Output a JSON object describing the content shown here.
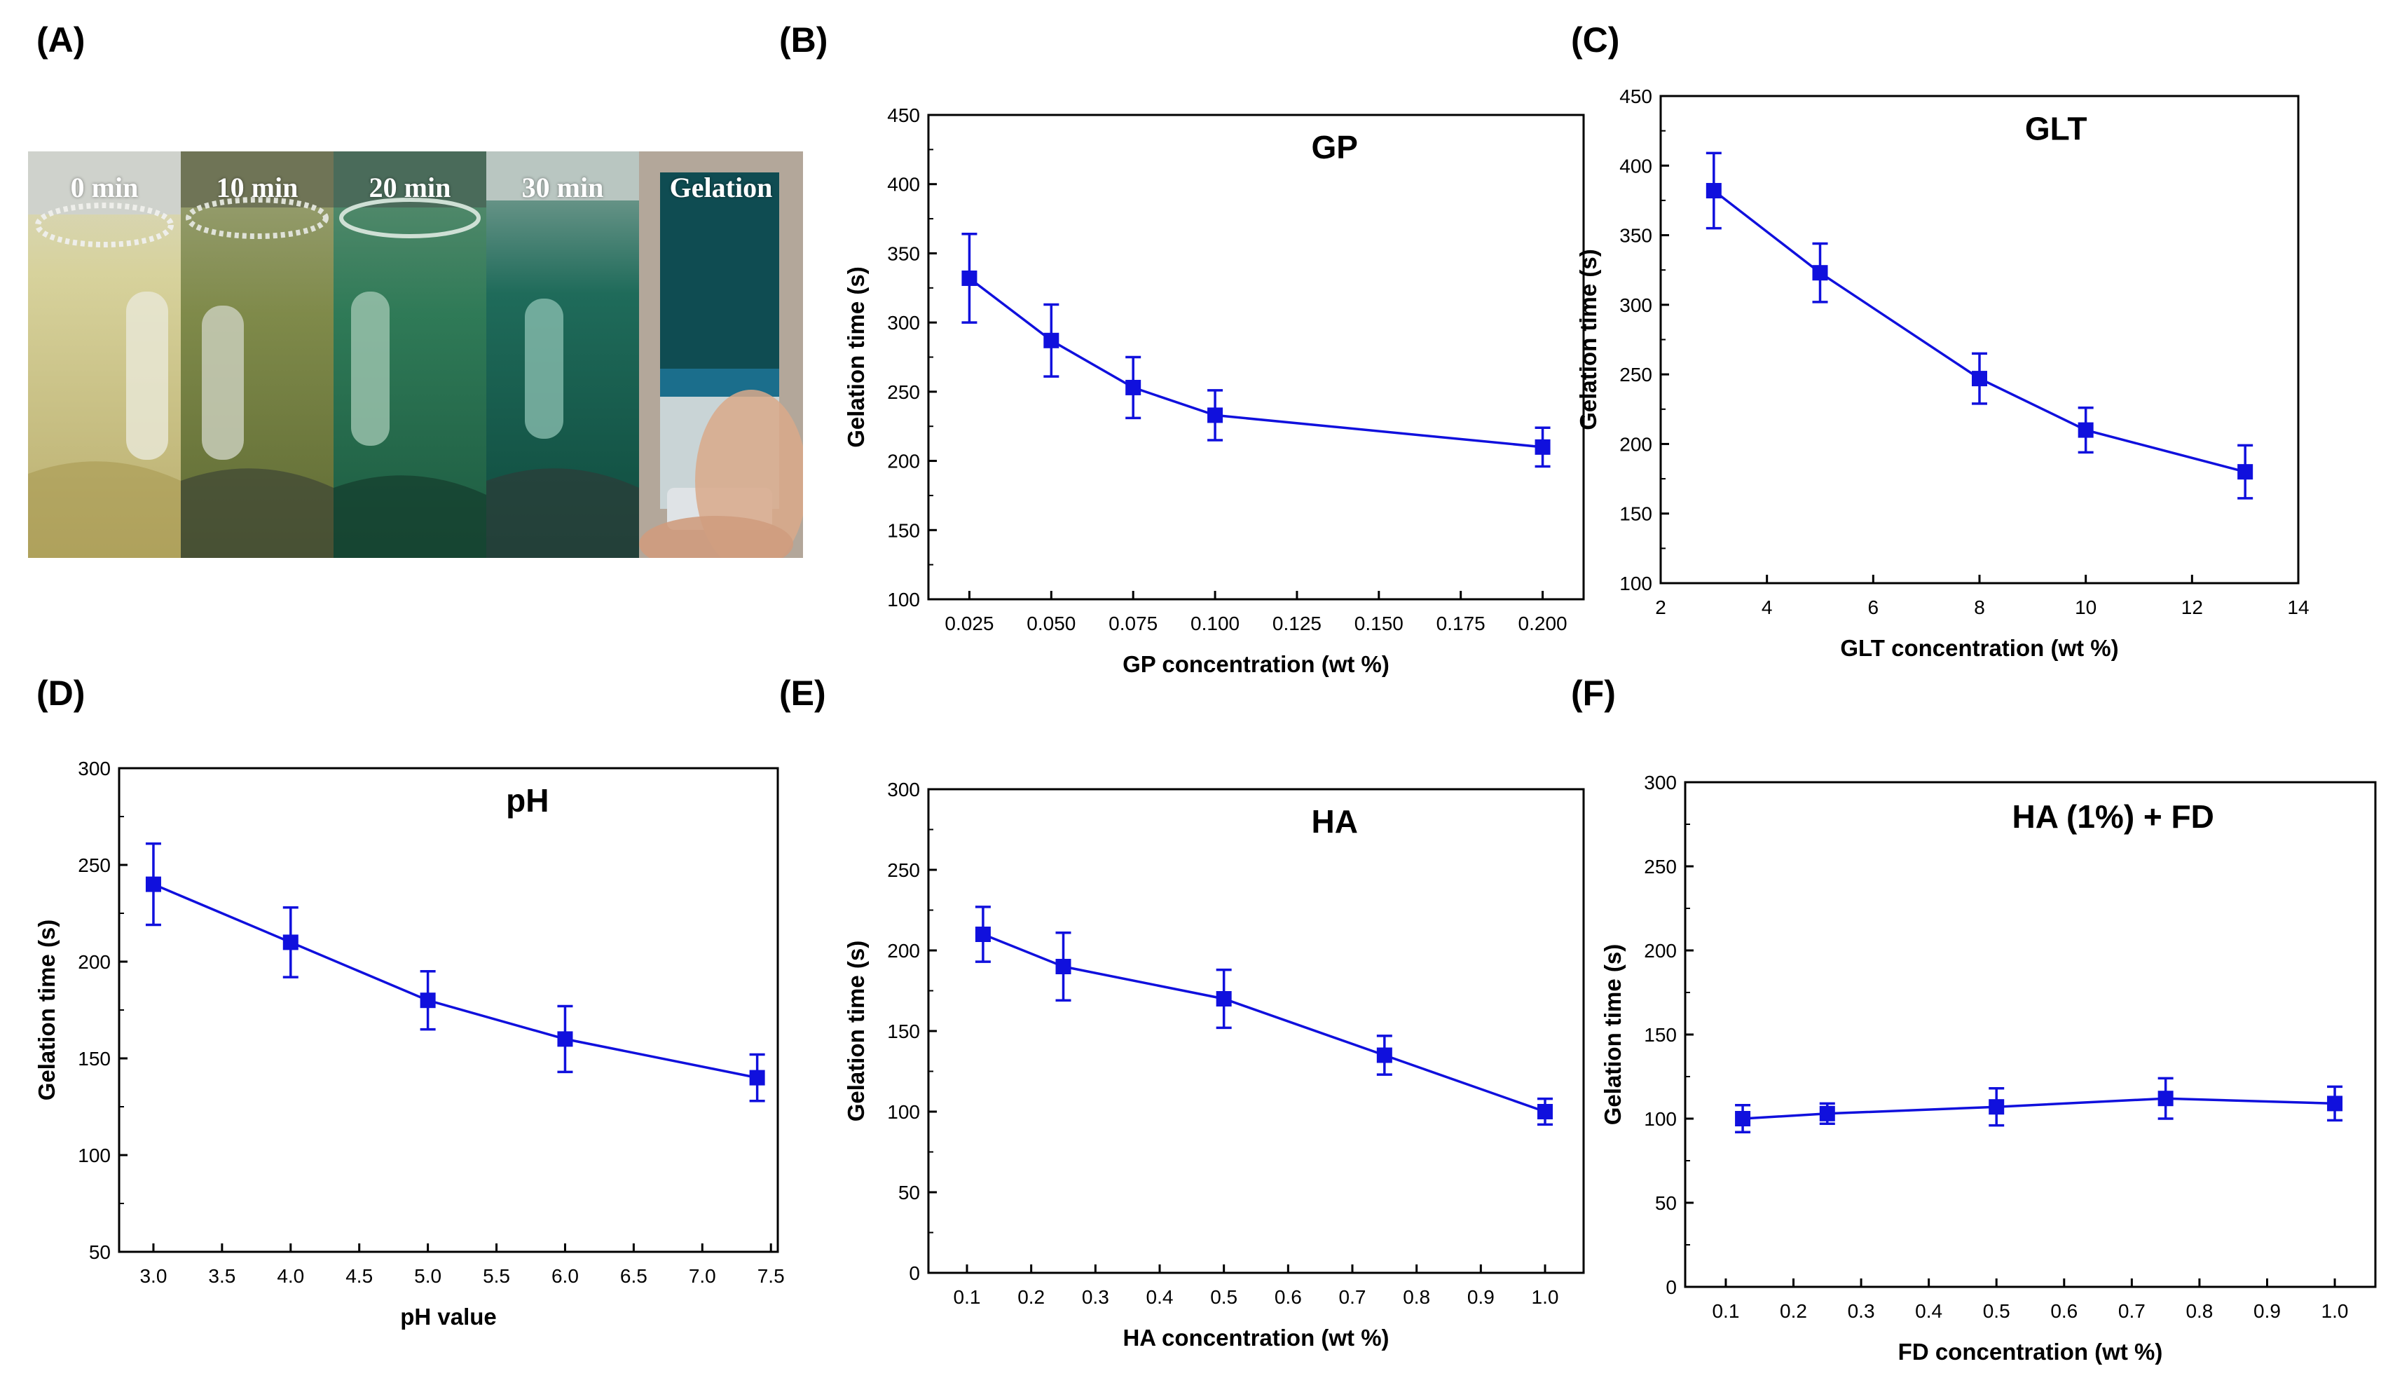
{
  "panels": {
    "a": "(A)",
    "b": "(B)",
    "c": "(C)",
    "d": "(D)",
    "e": "(E)",
    "f": "(F)"
  },
  "photos": [
    {
      "label": "0 min"
    },
    {
      "label": "10 min"
    },
    {
      "label": "20 min"
    },
    {
      "label": "30 min"
    },
    {
      "label": "Gelation"
    }
  ],
  "colors": {
    "series": "#1010dd"
  },
  "chart_data": [
    {
      "id": "B",
      "type": "line",
      "title": "GP",
      "xlabel": "GP concentration (wt %)",
      "ylabel": "Gelation time (s)",
      "xlim": [
        0.0125,
        0.2125
      ],
      "ylim": [
        100,
        450
      ],
      "xticks": [
        0.025,
        0.05,
        0.075,
        0.1,
        0.125,
        0.15,
        0.175,
        0.2
      ],
      "xtick_labels": [
        "0.025",
        "0.050",
        "0.075",
        "0.100",
        "0.125",
        "0.150",
        "0.175",
        "0.200"
      ],
      "yticks": [
        100,
        150,
        200,
        250,
        300,
        350,
        400,
        450
      ],
      "ytick_labels": [
        "100",
        "150",
        "200",
        "250",
        "300",
        "350",
        "400",
        "450"
      ],
      "x": [
        0.025,
        0.05,
        0.075,
        0.1,
        0.2
      ],
      "y": [
        332,
        287,
        253,
        233,
        210
      ],
      "err": [
        32,
        26,
        22,
        18,
        14
      ]
    },
    {
      "id": "C",
      "type": "line",
      "title": "GLT",
      "xlabel": "GLT concentration (wt %)",
      "ylabel": "Gelation time (s)",
      "xlim": [
        2,
        14
      ],
      "ylim": [
        100,
        450
      ],
      "xticks": [
        2,
        4,
        6,
        8,
        10,
        12,
        14
      ],
      "xtick_labels": [
        "2",
        "4",
        "6",
        "8",
        "10",
        "12",
        "14"
      ],
      "yticks": [
        100,
        150,
        200,
        250,
        300,
        350,
        400,
        450
      ],
      "ytick_labels": [
        "100",
        "150",
        "200",
        "250",
        "300",
        "350",
        "400",
        "450"
      ],
      "x": [
        3,
        5,
        8,
        10,
        13
      ],
      "y": [
        382,
        323,
        247,
        210,
        180
      ],
      "err": [
        27,
        21,
        18,
        16,
        19
      ]
    },
    {
      "id": "D",
      "type": "line",
      "title": "pH",
      "xlabel": "pH value",
      "ylabel": "Gelation time (s)",
      "xlim": [
        2.75,
        7.55
      ],
      "ylim": [
        50,
        300
      ],
      "xticks": [
        3.0,
        3.5,
        4.0,
        4.5,
        5.0,
        5.5,
        6.0,
        6.5,
        7.0,
        7.5
      ],
      "xtick_labels": [
        "3.0",
        "3.5",
        "4.0",
        "4.5",
        "5.0",
        "5.5",
        "6.0",
        "6.5",
        "7.0",
        "7.5"
      ],
      "yticks": [
        50,
        100,
        150,
        200,
        250,
        300
      ],
      "ytick_labels": [
        "50",
        "100",
        "150",
        "200",
        "250",
        "300"
      ],
      "x": [
        3.0,
        4.0,
        5.0,
        6.0,
        7.4
      ],
      "y": [
        240,
        210,
        180,
        160,
        140
      ],
      "err": [
        21,
        18,
        15,
        17,
        12
      ]
    },
    {
      "id": "E",
      "type": "line",
      "title": "HA",
      "xlabel": "HA concentration (wt %)",
      "ylabel": "Gelation time (s)",
      "xlim": [
        0.04,
        1.06
      ],
      "ylim": [
        0,
        300
      ],
      "xticks": [
        0.1,
        0.2,
        0.3,
        0.4,
        0.5,
        0.6,
        0.7,
        0.8,
        0.9,
        1.0
      ],
      "xtick_labels": [
        "0.1",
        "0.2",
        "0.3",
        "0.4",
        "0.5",
        "0.6",
        "0.7",
        "0.8",
        "0.9",
        "1.0"
      ],
      "yticks": [
        0,
        50,
        100,
        150,
        200,
        250,
        300
      ],
      "ytick_labels": [
        "0",
        "50",
        "100",
        "150",
        "200",
        "250",
        "300"
      ],
      "x": [
        0.125,
        0.25,
        0.5,
        0.75,
        1.0
      ],
      "y": [
        210,
        190,
        170,
        135,
        100
      ],
      "err": [
        17,
        21,
        18,
        12,
        8
      ]
    },
    {
      "id": "F",
      "type": "line",
      "title": "HA (1%) + FD",
      "xlabel": "FD concentration (wt %)",
      "ylabel": "Gelation time (s)",
      "xlim": [
        0.04,
        1.06
      ],
      "ylim": [
        0,
        300
      ],
      "xticks": [
        0.1,
        0.2,
        0.3,
        0.4,
        0.5,
        0.6,
        0.7,
        0.8,
        0.9,
        1.0
      ],
      "xtick_labels": [
        "0.1",
        "0.2",
        "0.3",
        "0.4",
        "0.5",
        "0.6",
        "0.7",
        "0.8",
        "0.9",
        "1.0"
      ],
      "yticks": [
        0,
        50,
        100,
        150,
        200,
        250,
        300
      ],
      "ytick_labels": [
        "0",
        "50",
        "100",
        "150",
        "200",
        "250",
        "300"
      ],
      "x": [
        0.125,
        0.25,
        0.5,
        0.75,
        1.0
      ],
      "y": [
        100,
        103,
        107,
        112,
        109
      ],
      "err": [
        8,
        6,
        11,
        12,
        10
      ]
    }
  ]
}
